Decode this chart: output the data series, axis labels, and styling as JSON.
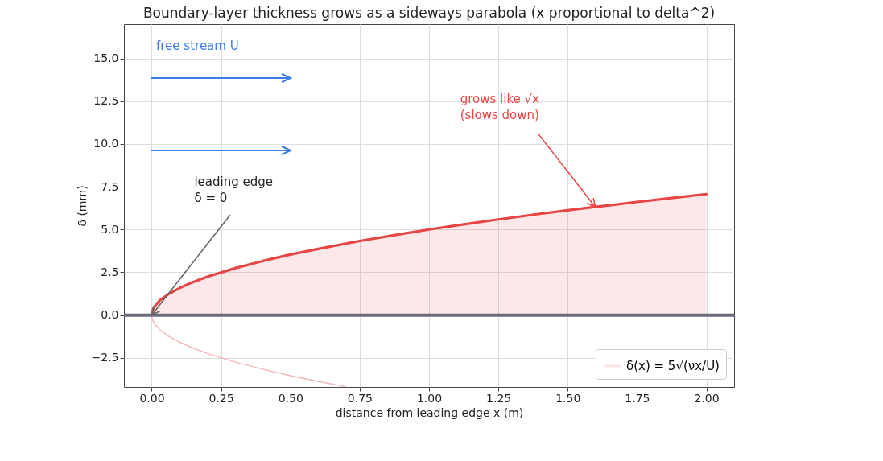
{
  "chart_data": {
    "type": "line",
    "title": "Boundary-layer thickness grows as a sideways parabola (x proportional to delta^2)",
    "xlabel": "distance from leading edge  x  (m)",
    "ylabel": "δ  (mm)",
    "x": [
      0,
      0.002,
      0.01,
      0.03,
      0.06,
      0.1,
      0.15,
      0.2,
      0.3,
      0.4,
      0.5,
      0.6,
      0.75,
      0.9,
      1.0,
      1.1,
      1.25,
      1.4,
      1.5,
      1.6,
      1.75,
      1.9,
      2.0
    ],
    "series": [
      {
        "type": "area",
        "name": "δ(x) = 5√(νx/U)",
        "color": "#e84545",
        "values": [
          0,
          0.22,
          0.5,
          0.87,
          1.22,
          1.58,
          1.94,
          2.24,
          2.74,
          3.16,
          3.54,
          3.87,
          4.33,
          4.74,
          5,
          5.24,
          5.59,
          5.92,
          6.12,
          6.32,
          6.61,
          6.89,
          7.07
        ]
      },
      {
        "color": "#f2b8b8",
        "x": [
          0,
          0.002,
          0.01,
          0.03,
          0.06,
          0.1,
          0.15,
          0.2,
          0.3,
          0.4,
          0.5,
          0.6,
          0.7
        ],
        "values": [
          0,
          -0.22,
          -0.5,
          -0.87,
          -1.22,
          -1.58,
          -1.94,
          -2.24,
          -2.74,
          -3.16,
          -3.54,
          -3.87,
          -4.18
        ]
      }
    ],
    "ref_lines": [
      {
        "axis": "y",
        "value": 0,
        "color": "#6b6b7e"
      }
    ],
    "xlim": [
      -0.1,
      2.1
    ],
    "ylim": [
      -4.2,
      17
    ],
    "xticks": [
      {
        "value": 0,
        "label": "0.00"
      },
      0.25,
      {
        "value": 0.5,
        "label": "0.50"
      },
      0.75,
      {
        "value": 1,
        "label": "1.00"
      },
      1.25,
      {
        "value": 1.5,
        "label": "1.50"
      },
      1.75,
      {
        "value": 2,
        "label": "2.00"
      }
    ],
    "yticks": [
      {
        "value": -2.5,
        "label": "−2.5"
      },
      {
        "value": 0,
        "label": "0.0"
      },
      2.5,
      {
        "value": 5,
        "label": "5.0"
      },
      7.5,
      {
        "value": 10,
        "label": "10.0"
      },
      12.5,
      {
        "value": 15,
        "label": "15.0"
      }
    ],
    "grid": true,
    "legend": "bottom right",
    "annotations": [
      {
        "text": "grows like √x\n(slows down)",
        "x": 1.6,
        "y": 6.3
      },
      {
        "text": "leading edge\nδ = 0",
        "x": 0,
        "y": 0
      },
      "free stream U"
    ]
  }
}
